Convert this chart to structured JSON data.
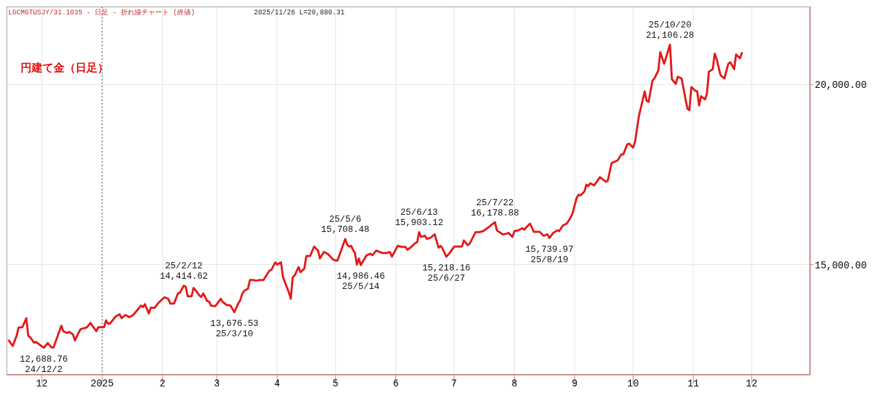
{
  "chart_data": {
    "type": "line",
    "title": "円建て金（日足）",
    "subtitle": "LGCMGTUSJY/31.1035 - 日足 - 折れ線チャート (終値)",
    "annotations": [
      "2025/11/26 L=20,880.31",
      {
        "text": "12,688.76\n24/12/2",
        "x": "2024-12-02",
        "y": 12688.76
      },
      {
        "text": "25/2/12\n14,414.62",
        "x": "2025-02-12",
        "y": 14414.62
      },
      {
        "text": "13,676.53\n25/3/10",
        "x": "2025-03-10",
        "y": 13676.53
      },
      {
        "text": "25/5/6\n15,708.48",
        "x": "2025-05-06",
        "y": 15708.48
      },
      {
        "text": "14,986.46\n25/5/14",
        "x": "2025-05-14",
        "y": 14986.46
      },
      {
        "text": "25/6/13\n15,903.12",
        "x": "2025-06-13",
        "y": 15903.12
      },
      {
        "text": "15,218.16\n25/6/27",
        "x": "2025-06-27",
        "y": 15218.16
      },
      {
        "text": "25/7/22\n16,178.88",
        "x": "2025-07-22",
        "y": 16178.88
      },
      {
        "text": "15,739.97\n25/8/19",
        "x": "2025-08-19",
        "y": 15739.97
      },
      {
        "text": "25/10/20\n21,106.28",
        "x": "2025-10-20",
        "y": 21106.28
      }
    ],
    "x": [
      "2024-11-14",
      "2024-11-16",
      "2024-11-18",
      "2024-11-19",
      "2024-11-21",
      "2024-11-23",
      "2024-11-24",
      "2024-11-25",
      "2024-11-27",
      "2024-11-28",
      "2024-12-02",
      "2024-12-04",
      "2024-12-06",
      "2024-12-07",
      "2024-12-11",
      "2024-12-12",
      "2024-12-14",
      "2024-12-15",
      "2024-12-17",
      "2024-12-18",
      "2024-12-20",
      "2024-12-21",
      "2024-12-24",
      "2024-12-26",
      "2024-12-27",
      "2024-12-29",
      "2024-12-30",
      "2025-01-02",
      "2025-01-03",
      "2025-01-04",
      "2025-01-05",
      "2025-01-08",
      "2025-01-10",
      "2025-01-11",
      "2025-01-13",
      "2025-01-15",
      "2025-01-17",
      "2025-01-21",
      "2025-01-22",
      "2025-01-23",
      "2025-01-25",
      "2025-01-26",
      "2025-01-28",
      "2025-01-30",
      "2025-02-02",
      "2025-02-04",
      "2025-02-05",
      "2025-02-07",
      "2025-02-09",
      "2025-02-10",
      "2025-02-12",
      "2025-02-13",
      "2025-02-14",
      "2025-02-16",
      "2025-02-17",
      "2025-02-18",
      "2025-02-20",
      "2025-02-21",
      "2025-02-22",
      "2025-02-24",
      "2025-02-25",
      "2025-02-26",
      "2025-02-28",
      "2025-03-01",
      "2025-03-03",
      "2025-03-04",
      "2025-03-06",
      "2025-03-08",
      "2025-03-10",
      "2025-03-12",
      "2025-03-13",
      "2025-03-14",
      "2025-03-15",
      "2025-03-17",
      "2025-03-18",
      "2025-03-20",
      "2025-03-21",
      "2025-03-23",
      "2025-03-25",
      "2025-03-26",
      "2025-03-28",
      "2025-03-29",
      "2025-03-31",
      "2025-04-01",
      "2025-04-03",
      "2025-04-04",
      "2025-04-07",
      "2025-04-08",
      "2025-04-09",
      "2025-04-10",
      "2025-04-12",
      "2025-04-13",
      "2025-04-15",
      "2025-04-16",
      "2025-04-18",
      "2025-04-20",
      "2025-04-22",
      "2025-04-23",
      "2025-04-25",
      "2025-04-27",
      "2025-04-30",
      "2025-05-02",
      "2025-05-06",
      "2025-05-07",
      "2025-05-08",
      "2025-05-09",
      "2025-05-10",
      "2025-05-11",
      "2025-05-12",
      "2025-05-13",
      "2025-05-14",
      "2025-05-17",
      "2025-05-19",
      "2025-05-20",
      "2025-05-22",
      "2025-05-25",
      "2025-05-27",
      "2025-05-29",
      "2025-05-30",
      "2025-06-02",
      "2025-06-04",
      "2025-06-06",
      "2025-06-07",
      "2025-06-09",
      "2025-06-11",
      "2025-06-12",
      "2025-06-13",
      "2025-06-14",
      "2025-06-16",
      "2025-06-17",
      "2025-06-19",
      "2025-06-21",
      "2025-06-23",
      "2025-06-24",
      "2025-06-25",
      "2025-06-27",
      "2025-06-29",
      "2025-07-01",
      "2025-07-03",
      "2025-07-05",
      "2025-07-06",
      "2025-07-08",
      "2025-07-09",
      "2025-07-12",
      "2025-07-14",
      "2025-07-16",
      "2025-07-19",
      "2025-07-22",
      "2025-07-23",
      "2025-07-26",
      "2025-07-28",
      "2025-07-29",
      "2025-07-31",
      "2025-08-01",
      "2025-08-03",
      "2025-08-05",
      "2025-08-06",
      "2025-08-09",
      "2025-08-11",
      "2025-08-14",
      "2025-08-16",
      "2025-08-18",
      "2025-08-19",
      "2025-08-21",
      "2025-08-23",
      "2025-08-24",
      "2025-08-26",
      "2025-08-28",
      "2025-08-30",
      "2025-08-31",
      "2025-09-02",
      "2025-09-03",
      "2025-09-04",
      "2025-09-06",
      "2025-09-07",
      "2025-09-08",
      "2025-09-09",
      "2025-09-11",
      "2025-09-14",
      "2025-09-17",
      "2025-09-18",
      "2025-09-20",
      "2025-09-23",
      "2025-09-25",
      "2025-09-26",
      "2025-09-28",
      "2025-09-29",
      "2025-10-01",
      "2025-10-02",
      "2025-10-04",
      "2025-10-07",
      "2025-10-08",
      "2025-10-09",
      "2025-10-11",
      "2025-10-12",
      "2025-10-14",
      "2025-10-15",
      "2025-10-17",
      "2025-10-20",
      "2025-10-21",
      "2025-10-23",
      "2025-10-24",
      "2025-10-26",
      "2025-10-28",
      "2025-10-29",
      "2025-10-30",
      "2025-10-31",
      "2025-11-02",
      "2025-11-03",
      "2025-11-04",
      "2025-11-05",
      "2025-11-07",
      "2025-11-08",
      "2025-11-09",
      "2025-11-11",
      "2025-11-12",
      "2025-11-13",
      "2025-11-15",
      "2025-11-17",
      "2025-11-19",
      "2025-11-20",
      "2025-11-22",
      "2025-11-23",
      "2025-11-25",
      "2025-11-26"
    ],
    "series": [
      {
        "color": "#e31a1a",
        "values": [
          12890,
          12740,
          13020,
          13250,
          13260,
          13510,
          13020,
          12980,
          12830,
          12850,
          12688.76,
          12820,
          12700,
          12700,
          13300,
          13150,
          13100,
          13130,
          13060,
          12890,
          13120,
          13210,
          13250,
          13380,
          13300,
          13150,
          13260,
          13260,
          13450,
          13360,
          13360,
          13560,
          13620,
          13510,
          13600,
          13540,
          13600,
          13860,
          13820,
          13900,
          13640,
          13800,
          13800,
          13940,
          14090,
          14050,
          13920,
          13920,
          14200,
          14220,
          14414.62,
          14380,
          14120,
          14120,
          14350,
          14290,
          14140,
          14100,
          14200,
          13990,
          13970,
          13860,
          13840,
          13900,
          14050,
          13960,
          13880,
          13860,
          13676.53,
          13920,
          14010,
          14180,
          14270,
          14330,
          14570,
          14570,
          14550,
          14570,
          14570,
          14660,
          14830,
          14850,
          15060,
          15000,
          15060,
          14650,
          14230,
          14050,
          14650,
          14700,
          14930,
          14790,
          14890,
          15240,
          15240,
          15500,
          15390,
          15170,
          15350,
          15300,
          15130,
          15110,
          15708.48,
          15560,
          15500,
          15520,
          15410,
          15320,
          15000,
          15170,
          14986.46,
          15260,
          15300,
          15260,
          15390,
          15320,
          15320,
          15350,
          15220,
          15520,
          15490,
          15490,
          15410,
          15490,
          15600,
          15620,
          15903.12,
          15770,
          15800,
          15710,
          15750,
          15840,
          15470,
          15520,
          15450,
          15218.16,
          15340,
          15500,
          15500,
          15500,
          15670,
          15540,
          15580,
          15900,
          15900,
          15930,
          16050,
          16178.88,
          15950,
          15840,
          15860,
          15880,
          15770,
          15930,
          15950,
          16010,
          15970,
          16140,
          15910,
          15910,
          15800,
          15840,
          15739.97,
          15880,
          15950,
          15930,
          16090,
          16140,
          16320,
          16440,
          16850,
          16940,
          16920,
          17030,
          17220,
          17180,
          17260,
          17200,
          17430,
          17300,
          17330,
          17820,
          17890,
          18060,
          18060,
          18340,
          18360,
          18250,
          18400,
          19120,
          19810,
          19550,
          19520,
          20110,
          20170,
          20390,
          20900,
          20580,
          21106.28,
          20150,
          20020,
          20220,
          20170,
          19590,
          19330,
          19290,
          19930,
          19830,
          19810,
          19420,
          19680,
          19590,
          19740,
          20360,
          20430,
          20860,
          20710,
          20260,
          20170,
          20580,
          20620,
          20430,
          20840,
          20730,
          20880.31
        ]
      }
    ],
    "xlim": [
      "2024-11-13",
      "2025-12-31"
    ],
    "xticks": [
      {
        "value": "2024-12-01",
        "label": "12"
      },
      {
        "value": "2025-01-01",
        "label": "2025"
      },
      {
        "value": "2025-02-01",
        "label": "2"
      },
      {
        "value": "2025-03-01",
        "label": "3"
      },
      {
        "value": "2025-04-01",
        "label": "4"
      },
      {
        "value": "2025-05-01",
        "label": "5"
      },
      {
        "value": "2025-06-01",
        "label": "6"
      },
      {
        "value": "2025-07-01",
        "label": "7"
      },
      {
        "value": "2025-08-01",
        "label": "8"
      },
      {
        "value": "2025-09-01",
        "label": "9"
      },
      {
        "value": "2025-10-01",
        "label": "10"
      },
      {
        "value": "2025-11-01",
        "label": "11"
      },
      {
        "value": "2025-12-01",
        "label": "12"
      }
    ],
    "ylim": [
      11940,
      22160
    ],
    "yticks": [
      {
        "value": 15000,
        "label": "15,000.00"
      },
      {
        "value": 20000,
        "label": "20,000.00"
      }
    ],
    "ref_lines": [
      {
        "axis": "x",
        "value": "2025-01-01",
        "color": "#5a5a9a",
        "line_style": "dotted"
      }
    ],
    "grid": true,
    "line_style": "solid",
    "marker": "none"
  }
}
